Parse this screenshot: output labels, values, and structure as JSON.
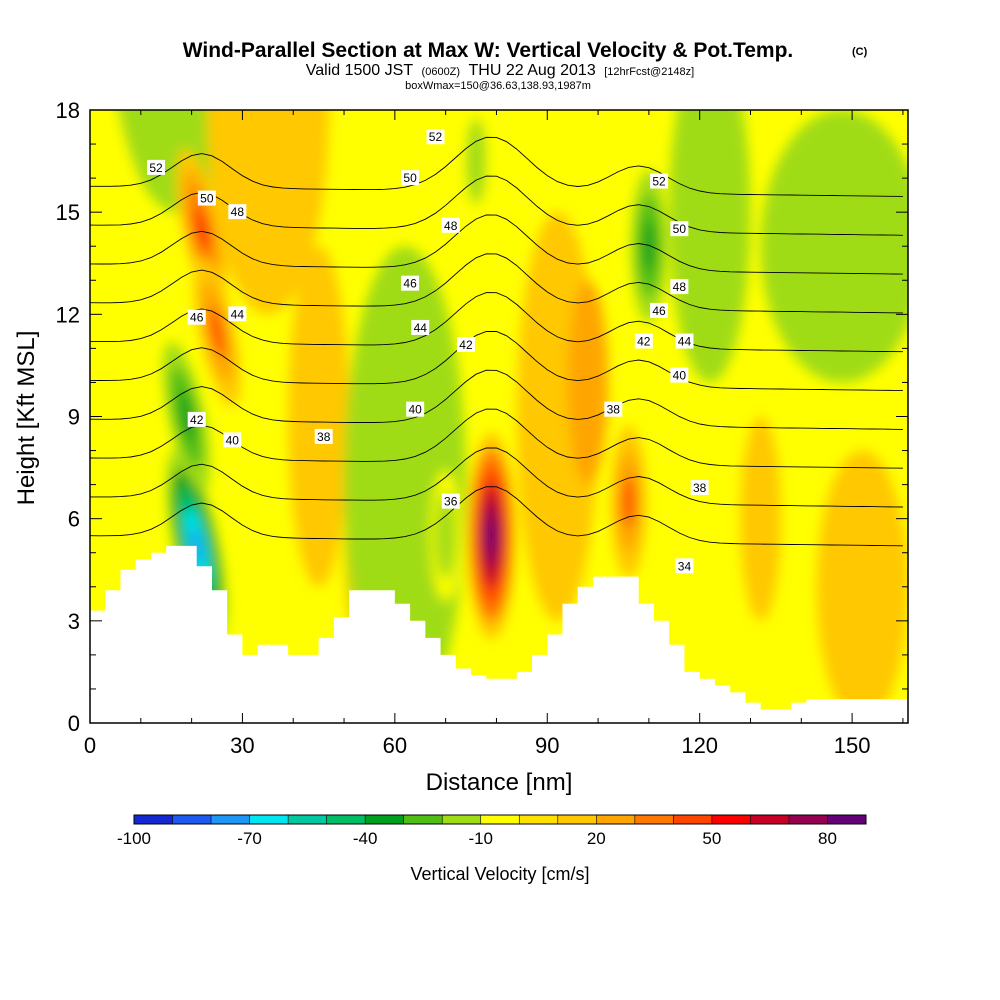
{
  "title": {
    "main": "Wind-Parallel Section at Max W: Vertical Velocity & Pot.Temp.",
    "main_tag": "(C)",
    "valid_prefix": "Valid 1500 JST",
    "valid_utc": "(0600Z)",
    "valid_date": "THU 22 Aug 2013",
    "forecast": "[12hrFcst@2148z]",
    "box": "boxWmax=150@36.63,138.93,1987m"
  },
  "chart_data": {
    "type": "heatmap",
    "xlabel": "Distance [nm]",
    "ylabel": "Height [Kft MSL]",
    "xlim": [
      0,
      161
    ],
    "ylim": [
      0,
      18
    ],
    "xticks": [
      "0",
      "30",
      "60",
      "90",
      "120",
      "150"
    ],
    "yticks": [
      "0",
      "3",
      "6",
      "9",
      "12",
      "15",
      "18"
    ],
    "x_tick_values": [
      0,
      30,
      60,
      90,
      120,
      150
    ],
    "y_tick_values": [
      0,
      3,
      6,
      9,
      12,
      15,
      18
    ],
    "colorbar": {
      "title": "Vertical Velocity [cm/s]",
      "tick_labels": [
        "-100",
        "-70",
        "-40",
        "-10",
        "20",
        "50",
        "80"
      ],
      "tick_values": [
        -100,
        -70,
        -40,
        -10,
        20,
        50,
        80
      ],
      "colors": [
        "#1428d2",
        "#1e5af0",
        "#1e96f5",
        "#00e6f0",
        "#00c8a0",
        "#00be64",
        "#00a01e",
        "#50be14",
        "#a0dc14",
        "#ffff00",
        "#ffe100",
        "#ffc800",
        "#ffa500",
        "#ff7800",
        "#ff4600",
        "#ff0000",
        "#c80028",
        "#960050",
        "#640078"
      ]
    },
    "velocity_features": [
      {
        "label": "updraft core",
        "x": 79,
        "z": 5.5,
        "w": 90
      },
      {
        "label": "updraft",
        "x": 22,
        "z": 14.5,
        "w": 50
      },
      {
        "label": "updraft",
        "x": 25,
        "z": 11.5,
        "w": 40
      },
      {
        "label": "updraft",
        "x": 106,
        "z": 6.5,
        "w": 40
      },
      {
        "label": "downdraft",
        "x": 21,
        "z": 5.2,
        "w": -80
      },
      {
        "label": "downdraft",
        "x": 19,
        "z": 9,
        "w": -40
      },
      {
        "label": "downdraft",
        "x": 110,
        "z": 14,
        "w": -40
      },
      {
        "label": "downdraft",
        "x": 76,
        "z": 16.5,
        "w": -20
      },
      {
        "label": "downdraft",
        "x": 70,
        "z": 5.5,
        "w": -20
      }
    ],
    "terrain_kft": {
      "x": [
        0,
        3,
        6,
        9,
        12,
        15,
        18,
        21,
        24,
        27,
        30,
        33,
        36,
        39,
        42,
        45,
        48,
        51,
        54,
        57,
        60,
        63,
        66,
        69,
        72,
        75,
        78,
        81,
        84,
        87,
        90,
        93,
        96,
        99,
        102,
        105,
        108,
        111,
        114,
        117,
        120,
        123,
        126,
        129,
        132,
        135,
        138,
        141,
        144,
        147,
        150,
        153,
        156,
        159,
        161
      ],
      "z": [
        3.3,
        3.9,
        4.5,
        4.8,
        5.0,
        5.2,
        5.2,
        4.6,
        3.9,
        2.6,
        2.0,
        2.3,
        2.3,
        2.0,
        2.0,
        2.5,
        3.1,
        3.9,
        3.9,
        3.9,
        3.5,
        3.0,
        2.5,
        2.0,
        1.6,
        1.4,
        1.3,
        1.3,
        1.5,
        2.0,
        2.6,
        3.5,
        4.0,
        4.3,
        4.3,
        4.3,
        3.5,
        3.0,
        2.3,
        1.5,
        1.3,
        1.1,
        0.9,
        0.6,
        0.4,
        0.4,
        0.6,
        0.7,
        0.7,
        0.7,
        0.7,
        0.7,
        0.7,
        0.7,
        0.7
      ]
    },
    "theta_contours": {
      "levels": [
        34,
        36,
        38,
        40,
        42,
        44,
        46,
        48,
        50,
        52
      ],
      "labels": [
        {
          "text": "52",
          "x": 13,
          "z": 16.3
        },
        {
          "text": "50",
          "x": 23,
          "z": 15.4
        },
        {
          "text": "48",
          "x": 29,
          "z": 15.0
        },
        {
          "text": "46",
          "x": 21,
          "z": 11.9
        },
        {
          "text": "44",
          "x": 29,
          "z": 12.0
        },
        {
          "text": "42",
          "x": 21,
          "z": 8.9
        },
        {
          "text": "40",
          "x": 28,
          "z": 8.3
        },
        {
          "text": "38",
          "x": 46,
          "z": 8.4
        },
        {
          "text": "52",
          "x": 68,
          "z": 17.2
        },
        {
          "text": "50",
          "x": 63,
          "z": 16.0
        },
        {
          "text": "48",
          "x": 71,
          "z": 14.6
        },
        {
          "text": "46",
          "x": 63,
          "z": 12.9
        },
        {
          "text": "44",
          "x": 65,
          "z": 11.6
        },
        {
          "text": "42",
          "x": 74,
          "z": 11.1
        },
        {
          "text": "40",
          "x": 64,
          "z": 9.2
        },
        {
          "text": "36",
          "x": 71,
          "z": 6.5
        },
        {
          "text": "38",
          "x": 103,
          "z": 9.2
        },
        {
          "text": "52",
          "x": 112,
          "z": 15.9
        },
        {
          "text": "50",
          "x": 116,
          "z": 14.5
        },
        {
          "text": "48",
          "x": 116,
          "z": 12.8
        },
        {
          "text": "46",
          "x": 112,
          "z": 12.1
        },
        {
          "text": "42",
          "x": 109,
          "z": 11.2
        },
        {
          "text": "44",
          "x": 117,
          "z": 11.2
        },
        {
          "text": "40",
          "x": 116,
          "z": 10.2
        },
        {
          "text": "38",
          "x": 120,
          "z": 6.9
        },
        {
          "text": "34",
          "x": 117,
          "z": 4.6
        }
      ]
    }
  }
}
